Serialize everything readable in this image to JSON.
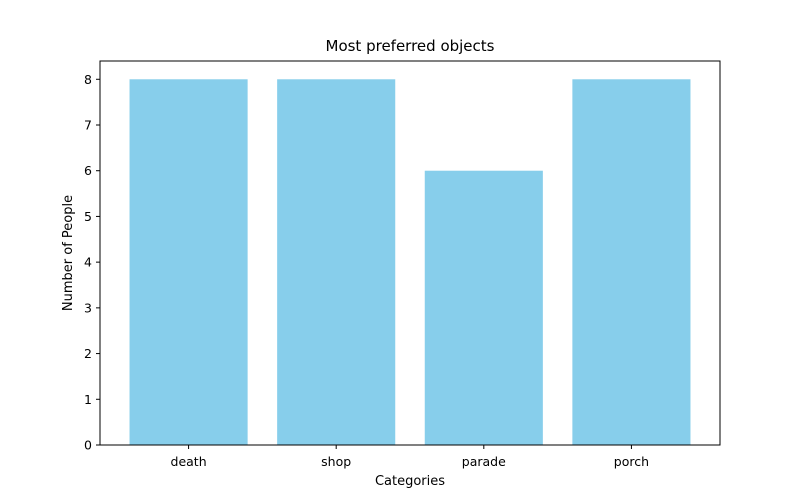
{
  "chart_data": {
    "type": "bar",
    "title": "Most preferred objects",
    "xlabel": "Categories",
    "ylabel": "Number of People",
    "categories": [
      "death",
      "shop",
      "parade",
      "porch"
    ],
    "values": [
      8,
      8,
      6,
      8
    ],
    "ylim": [
      0,
      8.4
    ],
    "yticks": [
      0,
      1,
      2,
      3,
      4,
      5,
      6,
      7,
      8
    ],
    "bar_color": "#87CEEB",
    "grid": false,
    "legend": "none"
  }
}
